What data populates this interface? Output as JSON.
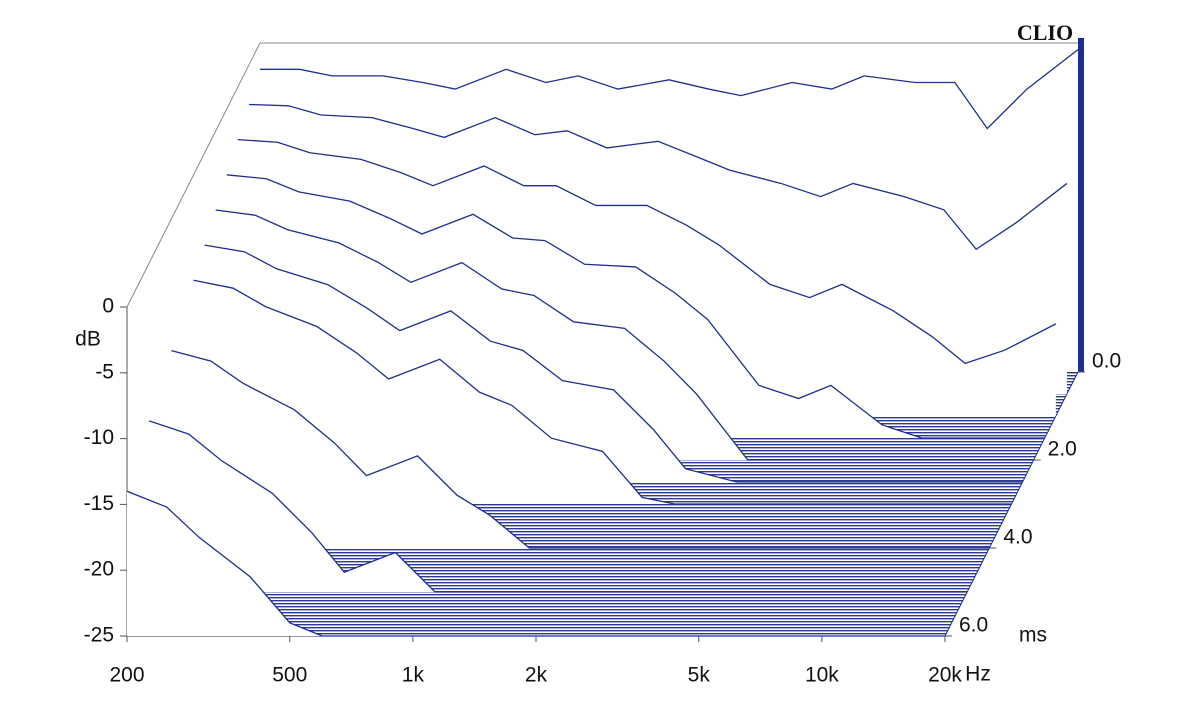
{
  "chart_data": {
    "type": "waterfall",
    "logo": "CLIO",
    "xlabel": "Hz",
    "ylabel": "dB",
    "zlabel": "ms",
    "color": "#1f2f8f",
    "xscale": "log",
    "xlim": [
      200,
      20000
    ],
    "xticks": [
      200,
      500,
      {
        "value": 1000,
        "label": "1k"
      },
      {
        "value": 2000,
        "label": "2k"
      },
      {
        "value": 5000,
        "label": "5k"
      },
      {
        "value": 10000,
        "label": "10k"
      },
      {
        "value": 20000,
        "label": "20k"
      }
    ],
    "ylim": [
      -25,
      0
    ],
    "yticks": [
      0,
      -5,
      -10,
      -15,
      -20,
      -25
    ],
    "zlim": [
      0,
      6
    ],
    "zticks": [
      {
        "value": 0,
        "label": "0.0"
      },
      {
        "value": 2,
        "label": "2.0"
      },
      {
        "value": 4,
        "label": "4.0"
      },
      {
        "value": 6,
        "label": "6.0"
      }
    ],
    "x": [
      200,
      250,
      300,
      400,
      500,
      600,
      800,
      1000,
      1200,
      1500,
      2000,
      2500,
      3000,
      4000,
      5000,
      6000,
      8000,
      10000,
      12000,
      15000,
      20000
    ],
    "z": [
      0,
      0.5,
      1,
      1.5,
      2,
      2.5,
      3,
      4,
      5,
      6
    ],
    "series": [
      {
        "values": [
          -2,
          -2,
          -2.5,
          -2.5,
          -3,
          -3.5,
          -2,
          -3,
          -2.5,
          -3.5,
          -2.8,
          -3.5,
          -4,
          -3,
          -3.5,
          -2.5,
          -3,
          -3,
          -6.5,
          -3.5,
          -0.5
        ]
      },
      {
        "values": [
          -3,
          -3.1,
          -3.8,
          -4,
          -4.8,
          -5.5,
          -4,
          -5.3,
          -5,
          -6.3,
          -5.8,
          -7,
          -8,
          -9,
          -10,
          -9,
          -10,
          -11,
          -14,
          -12,
          -9
        ]
      },
      {
        "values": [
          -4,
          -4.2,
          -5,
          -5.5,
          -6.5,
          -7.5,
          -6,
          -7.5,
          -7.5,
          -9,
          -9,
          -10.5,
          -12,
          -15,
          -16,
          -15,
          -17,
          -19,
          -21,
          -20,
          -18
        ]
      },
      {
        "values": [
          -5,
          -5.3,
          -6.3,
          -7,
          -8.3,
          -9.5,
          -8,
          -9.8,
          -10,
          -11.8,
          -12,
          -14,
          -16,
          -21,
          -22,
          -21,
          -24,
          -25,
          -25,
          -25,
          -25
        ]
      },
      {
        "values": [
          -6,
          -6.4,
          -7.5,
          -8.5,
          -10,
          -11.5,
          -10,
          -12,
          -12.5,
          -14.5,
          -15,
          -17.5,
          -20,
          -25,
          -25,
          -25,
          -25,
          -25,
          -25,
          -25,
          -25
        ]
      },
      {
        "values": [
          -7,
          -7.5,
          -8.8,
          -10,
          -11.8,
          -13.5,
          -12,
          -14.3,
          -15,
          -17.3,
          -18,
          -21,
          -24,
          -25,
          -25,
          -25,
          -25,
          -25,
          -25,
          -25,
          -25
        ]
      },
      {
        "values": [
          -8,
          -8.6,
          -10,
          -11.5,
          -13.5,
          -15.5,
          -14,
          -16.5,
          -17.5,
          -20,
          -21,
          -24.5,
          -25,
          -25,
          -25,
          -25,
          -25,
          -25,
          -25,
          -25,
          -25
        ]
      },
      {
        "values": [
          -10,
          -10.8,
          -12.5,
          -14.5,
          -17,
          -19.5,
          -18,
          -21,
          -22.5,
          -25,
          -25,
          -25,
          -25,
          -25,
          -25,
          -25,
          -25,
          -25,
          -25,
          -25,
          -25
        ]
      },
      {
        "values": [
          -12,
          -13,
          -15,
          -17.5,
          -20.5,
          -23.5,
          -22,
          -25,
          -25,
          -25,
          -25,
          -25,
          -25,
          -25,
          -25,
          -25,
          -25,
          -25,
          -25,
          -25,
          -25
        ]
      },
      {
        "values": [
          -14,
          -15.2,
          -17.5,
          -20.5,
          -24,
          -25,
          -25,
          -25,
          -25,
          -25,
          -25,
          -25,
          -25,
          -25,
          -25,
          -25,
          -25,
          -25,
          -25,
          -25,
          -25
        ]
      }
    ]
  }
}
